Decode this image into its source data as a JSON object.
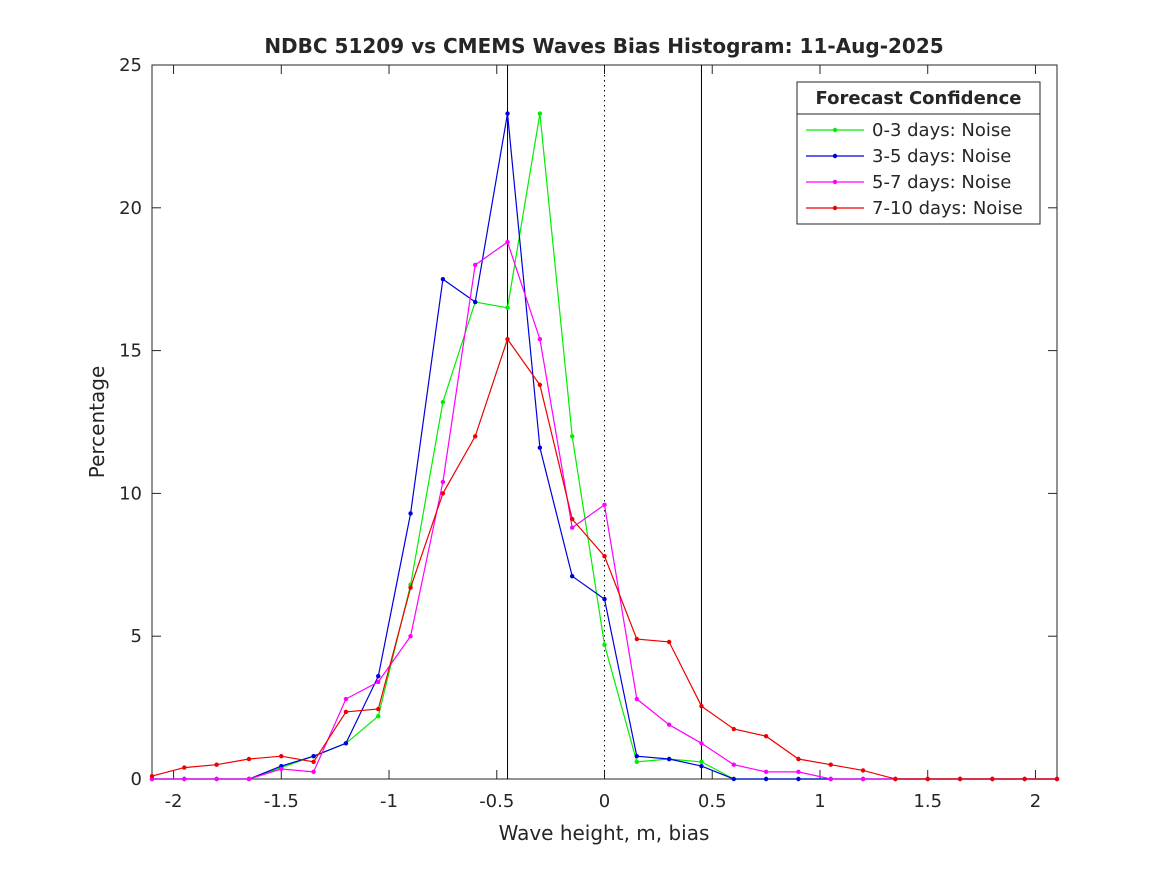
{
  "chart_data": {
    "type": "line",
    "title": "NDBC 51209 vs CMEMS Waves Bias Histogram: 11-Aug-2025",
    "xlabel": "Wave height, m, bias",
    "ylabel": "Percentage",
    "xlim": [
      -2.1,
      2.1
    ],
    "ylim": [
      0,
      25
    ],
    "xticks": [
      -2,
      -1.5,
      -1,
      -0.5,
      0,
      0.5,
      1,
      1.5,
      2
    ],
    "xtick_labels": [
      "-2",
      "-1.5",
      "-1",
      "-0.5",
      "0",
      "0.5",
      "1",
      "1.5",
      "2"
    ],
    "yticks": [
      0,
      5,
      10,
      15,
      20,
      25
    ],
    "ytick_labels": [
      "0",
      "5",
      "10",
      "15",
      "20",
      "25"
    ],
    "grid": false,
    "legend": {
      "title": "Forecast Confidence",
      "placement": "top-right"
    },
    "reference_lines": [
      {
        "x": -0.45,
        "style": "solid",
        "color": "#000000"
      },
      {
        "x": 0,
        "style": "dotted",
        "color": "#000000"
      },
      {
        "x": 0.45,
        "style": "solid",
        "color": "#000000"
      }
    ],
    "x": [
      -2.1,
      -1.95,
      -1.8,
      -1.65,
      -1.5,
      -1.35,
      -1.2,
      -1.05,
      -0.9,
      -0.75,
      -0.6,
      -0.45,
      -0.3,
      -0.15,
      0,
      0.15,
      0.3,
      0.45,
      0.6,
      0.75,
      0.9,
      1.05,
      1.2,
      1.35,
      1.5,
      1.65,
      1.8,
      1.95,
      2.1
    ],
    "series": [
      {
        "name": "0-3 days: Noise",
        "color": "#00ee00",
        "values": [
          0,
          0,
          0,
          0,
          0.4,
          0.8,
          1.25,
          2.2,
          6.8,
          13.2,
          16.7,
          16.5,
          23.3,
          12.0,
          4.7,
          0.6,
          0.7,
          0.6,
          0,
          0,
          0,
          0,
          0,
          0,
          0,
          0,
          0,
          0,
          0
        ]
      },
      {
        "name": "3-5 days: Noise",
        "color": "#0000dd",
        "values": [
          0,
          0,
          0,
          0,
          0.45,
          0.8,
          1.25,
          3.6,
          9.3,
          17.5,
          16.7,
          23.3,
          11.6,
          7.1,
          6.3,
          0.8,
          0.7,
          0.45,
          0,
          0,
          0,
          0,
          0,
          0,
          0,
          0,
          0,
          0,
          0
        ]
      },
      {
        "name": "5-7 days: Noise",
        "color": "#ff00ff",
        "values": [
          0,
          0,
          0,
          0,
          0.35,
          0.25,
          2.8,
          3.4,
          5.0,
          10.4,
          18.0,
          18.8,
          15.4,
          8.8,
          9.6,
          2.8,
          1.9,
          1.25,
          0.5,
          0.25,
          0.25,
          0,
          0,
          0,
          0,
          0,
          0,
          0,
          0
        ]
      },
      {
        "name": "7-10 days: Noise",
        "color": "#ee0000",
        "values": [
          0.1,
          0.4,
          0.5,
          0.7,
          0.8,
          0.6,
          2.35,
          2.45,
          6.7,
          10.0,
          12.0,
          15.4,
          13.8,
          9.1,
          7.8,
          4.9,
          4.8,
          2.55,
          1.75,
          1.5,
          0.7,
          0.5,
          0.3,
          0,
          0,
          0,
          0,
          0,
          0
        ]
      }
    ]
  }
}
